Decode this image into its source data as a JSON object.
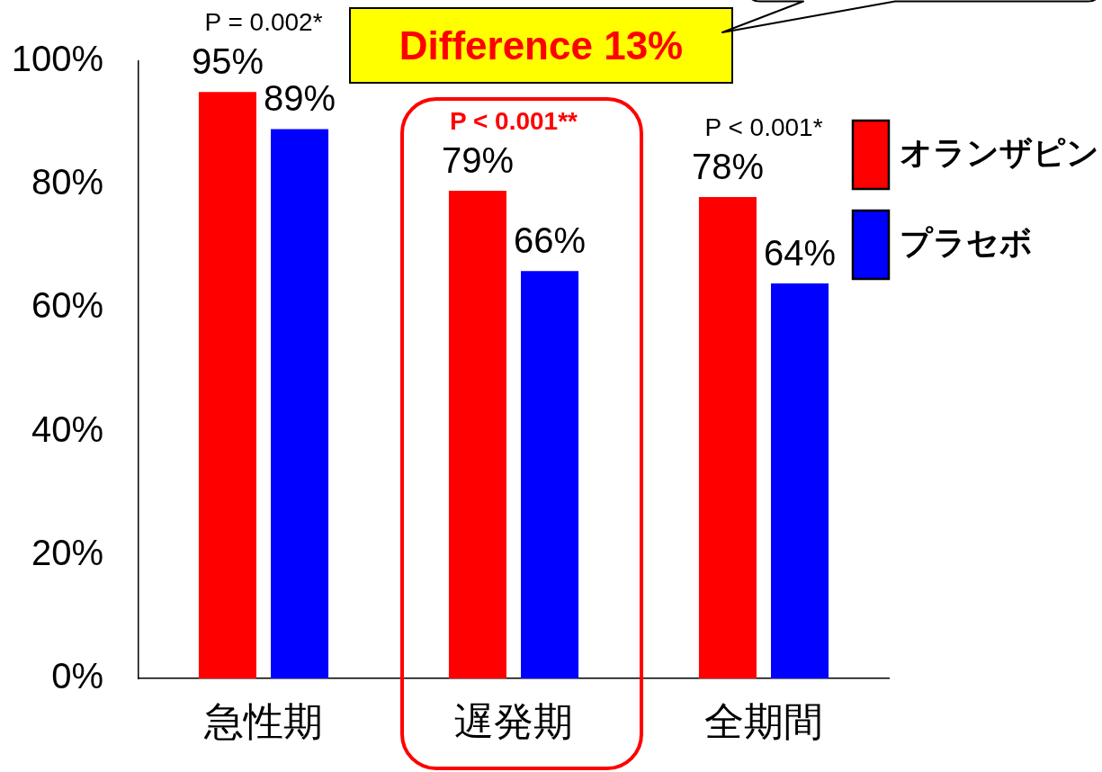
{
  "chart_data": {
    "type": "bar",
    "categories": [
      "急性期",
      "遅発期",
      "全期間"
    ],
    "series": [
      {
        "name": "オランザピン",
        "color": "#ff0000",
        "values": [
          95,
          79,
          78
        ],
        "value_labels": [
          "95%",
          "79%",
          "78%"
        ]
      },
      {
        "name": "プラセボ",
        "color": "#0000ff",
        "values": [
          89,
          66,
          64
        ],
        "value_labels": [
          "89%",
          "66%",
          "64%"
        ]
      }
    ],
    "ylim": [
      0,
      100
    ],
    "yticks": [
      {
        "value": 0,
        "label": "0%"
      },
      {
        "value": 20,
        "label": "20%"
      },
      {
        "value": 40,
        "label": "40%"
      },
      {
        "value": 60,
        "label": "60%"
      },
      {
        "value": 80,
        "label": "80%"
      },
      {
        "value": 100,
        "label": "100%"
      }
    ],
    "legend": "top right",
    "annotations": [
      "P = 0.002*",
      "P < 0.001**",
      "P < 0.001*",
      "Difference 13%"
    ]
  }
}
